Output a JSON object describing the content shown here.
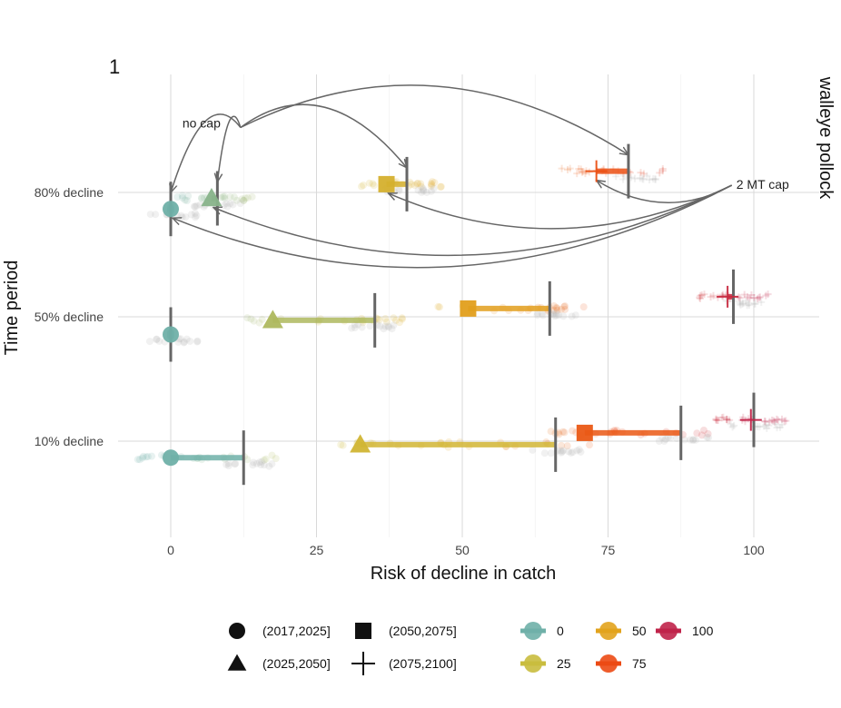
{
  "chart_data": {
    "type": "scatter",
    "panel_tag": "1",
    "facet_label": "walleye pollock",
    "xlabel": "Risk of decline in catch",
    "ylabel": "Time period",
    "xlim": [
      -5,
      111
    ],
    "x_ticks": [
      0,
      25,
      50,
      75,
      100
    ],
    "categories": [
      "80% decline",
      "50% decline",
      "10% decline"
    ],
    "grid": true,
    "legend_position": "bottom",
    "shape_legend": [
      {
        "label": "(2017,2025]",
        "shape": "circle"
      },
      {
        "label": "(2050,2075]",
        "shape": "square"
      },
      {
        "label": "(2025,2050]",
        "shape": "triangle"
      },
      {
        "label": "(2075,2100]",
        "shape": "plus"
      }
    ],
    "color_legend": [
      {
        "label": "0",
        "value": 0,
        "color": "#6fb0a8"
      },
      {
        "label": "50",
        "value": 50,
        "color": "#e2a31d"
      },
      {
        "label": "100",
        "value": 100,
        "color": "#c0234a"
      },
      {
        "label": "25",
        "value": 25,
        "color": "#c9bc3e"
      },
      {
        "label": "75",
        "value": 75,
        "color": "#ec4a14"
      }
    ],
    "annotations": [
      {
        "text": "no cap",
        "x": 2,
        "y": "80% decline",
        "dy": 0.55
      },
      {
        "text": "2 MT cap",
        "x": 97,
        "y": "80% decline",
        "dy": 0.03
      }
    ],
    "series": [
      {
        "category": "80% decline",
        "period": "(2017,2025]",
        "shape": "circle",
        "no_cap": 0,
        "cap": 0,
        "offset": -0.14
      },
      {
        "category": "80% decline",
        "period": "(2025,2050]",
        "shape": "triangle",
        "no_cap": 8,
        "cap": 7,
        "offset": -0.05
      },
      {
        "category": "80% decline",
        "period": "(2050,2075]",
        "shape": "square",
        "no_cap": 40.5,
        "cap": 37,
        "offset": 0.07
      },
      {
        "category": "80% decline",
        "period": "(2075,2100]",
        "shape": "plus",
        "no_cap": 78.5,
        "cap": 73,
        "offset": 0.18
      },
      {
        "category": "50% decline",
        "period": "(2017,2025]",
        "shape": "circle",
        "no_cap": 0,
        "cap": 0,
        "offset": -0.15
      },
      {
        "category": "50% decline",
        "period": "(2025,2050]",
        "shape": "triangle",
        "no_cap": 35,
        "cap": 17.5,
        "offset": -0.03
      },
      {
        "category": "50% decline",
        "period": "(2050,2075]",
        "shape": "square",
        "no_cap": 65,
        "cap": 51,
        "offset": 0.07
      },
      {
        "category": "50% decline",
        "period": "(2075,2100]",
        "shape": "plus",
        "no_cap": 96.5,
        "cap": 95.5,
        "offset": 0.17
      },
      {
        "category": "10% decline",
        "period": "(2017,2025]",
        "shape": "circle",
        "no_cap": 12.5,
        "cap": 0,
        "offset": -0.14
      },
      {
        "category": "10% decline",
        "period": "(2025,2050]",
        "shape": "triangle",
        "no_cap": 66,
        "cap": 32.5,
        "offset": -0.03
      },
      {
        "category": "10% decline",
        "period": "(2050,2075]",
        "shape": "square",
        "no_cap": 87.5,
        "cap": 71,
        "offset": 0.07
      },
      {
        "category": "10% decline",
        "period": "(2075,2100]",
        "shape": "plus",
        "no_cap": 100,
        "cap": 99.5,
        "offset": 0.18
      }
    ]
  }
}
